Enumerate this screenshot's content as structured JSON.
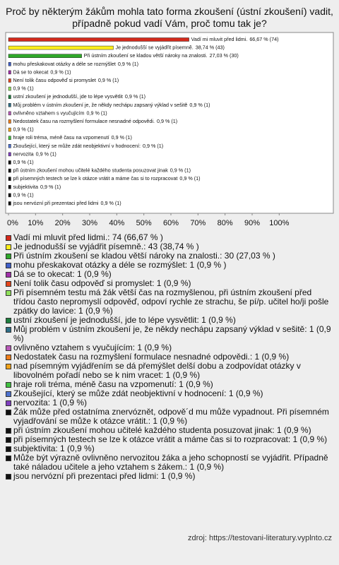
{
  "chart_data": {
    "type": "barh",
    "title": "Proč by některým žákům mohla tato forma zkoušení (ústní zkoušení) vadit, případně pokud vadí Vám, proč tomu tak je?",
    "categories": [
      "Vadí mi mluvit před lidmi.",
      "Je jednodušší se vyjádřit písemně.",
      "Při ústním zkoušení se kladou větší nároky na znalosti.",
      "mohu přeskakovat otázky a déle se rozmýšlet",
      "Dá se to okecat",
      "Není tolik času odpověď si promyslet",
      null,
      "ustní zkoušení je jednodušší, jde to lépe vysvětlit",
      "Můj problém v ústním zkoušení je, že někdy nechápu zapsaný výklad v sešitě",
      "ovlivněno vztahem s vyučujícím",
      "Nedostatek času na rozmyšlení formulace nesnadné odpovědi.",
      null,
      "hraje roli tréma, méně času na vzpomenutí",
      "Zkoušející, který se může zdát neobjektivní v hodnocení:",
      "nervozita",
      null,
      "při ústním zkoušení mohou učitelé každého studenta posuzovat jinak",
      "při písemných testech se lze k otázce vrátit a máme čas si to rozpracovat",
      "subjektivita",
      null,
      "jsou nervózní při prezentaci před lidmi"
    ],
    "values": [
      66.67,
      38.74,
      27.03,
      0.9,
      0.9,
      0.9,
      0.9,
      0.9,
      0.9,
      0.9,
      0.9,
      0.9,
      0.9,
      0.9,
      0.9,
      0.9,
      0.9,
      0.9,
      0.9,
      0.9,
      0.9
    ],
    "value_labels": [
      "66,67 % (74)",
      "38,74 % (43)",
      "27,03 % (30)",
      "0,9 % (1)",
      "0,9 % (1)",
      "0,9 % (1)",
      "0,9 % (1)",
      "0,9 % (1)",
      "0,9 % (1)",
      "0,9 % (1)",
      "0,9 % (1)",
      "0,9 % (1)",
      "0,9 % (1)",
      "0,9 % (1)",
      "0,9 % (1)",
      "0,9 % (1)",
      "0,9 % (1)",
      "0,9 % (1)",
      "0,9 % (1)",
      "0,9 % (1)",
      "0,9 % (1)"
    ],
    "colors": [
      "#d42a1c",
      "#ffef1a",
      "#2fa82a",
      "#3f5fc8",
      "#a02fa8",
      "#e4461c",
      "#8fe05a",
      "#1f7f3f",
      "#2f6f88",
      "#b85ab8",
      "#ee7d1a",
      "#f0a21a",
      "#3fbf3f",
      "#4f73cf",
      "#7f3fbf",
      "#111111",
      "#111111",
      "#111111",
      "#111111",
      "#111111",
      "#111111"
    ],
    "legend": [
      "Vadí mi mluvit před lidmi.: 74 (66,67 % )",
      "Je jednodušší se vyjádřit písemně.: 43 (38,74 % )",
      "Při ústním zkoušení se kladou větší nároky na znalosti.: 30 (27,03 % )",
      "mohu přeskakovat otázky a déle se rozmýšlet: 1 (0,9 % )",
      "Dá se to okecat: 1 (0,9 %)",
      "Není tolik času odpověď si promyslet: 1 (0,9 %)",
      "Při písemném testu má žák větší čas na rozmyšlenou, při ústním zkoušení před třídou často nepromyslí odpověď, odpoví rychle ze strachu, še pí/p. učitel ho/ji pošle zpátky do lavice: 1 (0,9 %)",
      "ustní zkoušení je jednodušší, jde to lépe vysvětlit: 1 (0,9 %)",
      "Můj problém v ústním zkoušení je, že někdy nechápu zapsaný výklad v sešitě: 1 (0,9 %)",
      "ovlivněno vztahem s vyučujícím: 1 (0,9 %)",
      "Nedostatek času na rozmyšlení formulace nesnadné odpovědi.: 1 (0,9 %)",
      "nad písemným vyjádřením se dá přemýšlet delší dobu a zodpovídat otázky v libovolném pořadí nebo se k nim vracet: 1 (0,9 %)",
      "hraje roli tréma, méně času na vzpomenutí: 1 (0,9 %)",
      "Zkoušející, který se může zdát neobjektivní v hodnocení: 1 (0,9 %)",
      "nervozita: 1 (0,9 %)",
      "Žák může před ostatníma znervóznět, odpově´d mu může vypadnout. Při písemném vyjadřování se může k otázce vrátit.: 1 (0,9 %)",
      "při ústním zkoušení mohou učitelé každého studenta posuzovat jinak: 1 (0,9 %)",
      "při písemných testech se lze k otázce vrátit a máme čas si to rozpracovat: 1 (0,9 %)",
      "subjektivita: 1 (0,9 %)",
      "Může být výrazně ovlivněno nervozitou žáka a jeho schopností se vyjádřit. Případně také náladou učitele a jeho vztahem s žákem.: 1 (0,9 %)",
      "jsou nervózní při prezentaci před lidmi: 1 (0,9 %)"
    ],
    "xlim": [
      0,
      120
    ],
    "xticks": [
      {
        "value": 0,
        "label": "0%"
      },
      {
        "value": 10,
        "label": "10%"
      },
      {
        "value": 20,
        "label": "20%"
      },
      {
        "value": 30,
        "label": "30%"
      },
      {
        "value": 40,
        "label": "40%"
      },
      {
        "value": 50,
        "label": "50%"
      },
      {
        "value": 60,
        "label": "60%"
      },
      {
        "value": 70,
        "label": "70%"
      },
      {
        "value": 80,
        "label": "80%"
      },
      {
        "value": 90,
        "label": "90%"
      },
      {
        "value": 100,
        "label": "100%"
      }
    ],
    "source": "zdroj: https://testovani-literatury.vyplnto.cz"
  }
}
